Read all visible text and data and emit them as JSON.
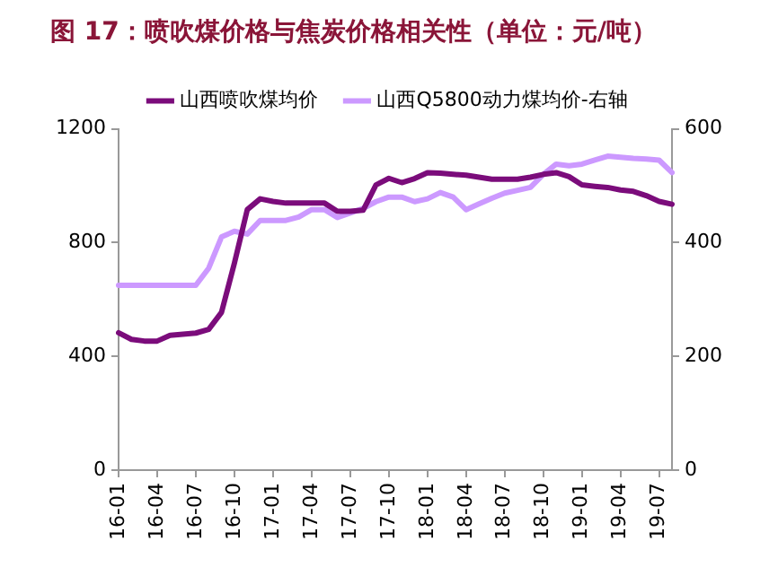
{
  "chart_data": {
    "type": "line",
    "title": "图 17：喷吹煤价格与焦炭价格相关性（单位：元/吨）",
    "categories": [
      "16-01",
      null,
      null,
      "16-04",
      null,
      null,
      "16-07",
      null,
      null,
      "16-10",
      null,
      null,
      "17-01",
      null,
      null,
      "17-04",
      null,
      null,
      "17-07",
      null,
      null,
      "17-10",
      null,
      null,
      "18-01",
      null,
      null,
      "18-04",
      null,
      null,
      "18-07",
      null,
      null,
      "18-10",
      null,
      null,
      "19-01",
      null,
      null,
      "19-04",
      null,
      null,
      "19-07",
      null
    ],
    "series": [
      {
        "name": "山西喷吹煤均价",
        "color": "#7b0c7b",
        "values": [
          483,
          460,
          454,
          454,
          474,
          478,
          482,
          495,
          555,
          728,
          916,
          954,
          945,
          939,
          939,
          939,
          939,
          910,
          910,
          914,
          1003,
          1026,
          1011,
          1025,
          1046,
          1044,
          1040,
          1037,
          1030,
          1023,
          1023,
          1023,
          1030,
          1040,
          1046,
          1032,
          1003,
          998,
          994,
          985,
          980,
          965,
          945,
          935
        ]
      },
      {
        "name": "山西Q5800动力煤均价-右轴",
        "color": "#cc99ff",
        "axis": "y2",
        "values": [
          325,
          325,
          325,
          325,
          325,
          325,
          325,
          355,
          410,
          420,
          415,
          439,
          439,
          439,
          445,
          458,
          458,
          444,
          452,
          460,
          472,
          480,
          480,
          472,
          477,
          488,
          480,
          458,
          468,
          478,
          487,
          492,
          497,
          520,
          538,
          535,
          538,
          545,
          552,
          550,
          548,
          547,
          545,
          523
        ]
      }
    ],
    "ylim": [
      0,
      1200
    ],
    "yticks": [
      0,
      400,
      800,
      1200
    ],
    "y2lim": [
      0,
      600
    ],
    "y2ticks": [
      0,
      200,
      400,
      600
    ],
    "grid": false,
    "legend": "top",
    "marker": "none",
    "line_style": "solid"
  }
}
